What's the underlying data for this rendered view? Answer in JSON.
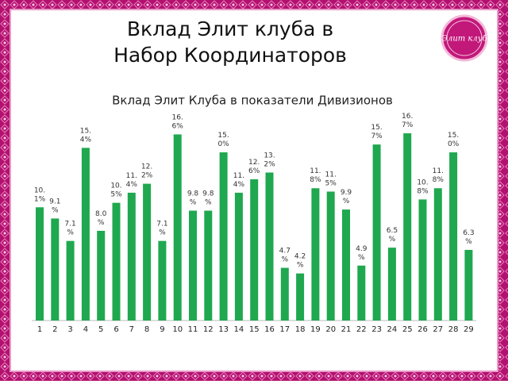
{
  "header": {
    "title_lines": [
      "Вклад Элит клуба в",
      "Набор Координаторов"
    ],
    "logo": "Элит клуб"
  },
  "chart_data": {
    "type": "bar",
    "title": "Вклад Элит Клуба в показатели Дивизионов",
    "categories": [
      "1",
      "2",
      "3",
      "4",
      "5",
      "6",
      "7",
      "8",
      "9",
      "10",
      "11",
      "12",
      "13",
      "14",
      "15",
      "16",
      "17",
      "18",
      "19",
      "20",
      "21",
      "22",
      "23",
      "24",
      "25",
      "26",
      "27",
      "28",
      "29"
    ],
    "values": [
      10.1,
      9.1,
      7.1,
      15.4,
      8.0,
      10.5,
      11.4,
      12.2,
      7.1,
      16.6,
      9.8,
      9.8,
      15.0,
      11.4,
      12.6,
      13.2,
      4.7,
      4.2,
      11.8,
      11.5,
      9.9,
      4.9,
      15.7,
      6.5,
      16.7,
      10.8,
      11.8,
      15.0,
      6.3
    ],
    "value_labels": [
      "10.1%",
      "9.1%",
      "7.1%",
      "15.4%",
      "8.0%",
      "10.5%",
      "11.4%",
      "12.2%",
      "7.1%",
      "16.6%",
      "9.8%",
      "9.8%",
      "15.0%",
      "11.4%",
      "12.6%",
      "13.2%",
      "4.7%",
      "4.2%",
      "11.8%",
      "11.5%",
      "9.9%",
      "4.9%",
      "15.7%",
      "6.5%",
      "16.7%",
      "10.8%",
      "11.8%",
      "15.0%",
      "6.3%"
    ],
    "color": "#1fa84f"
  }
}
